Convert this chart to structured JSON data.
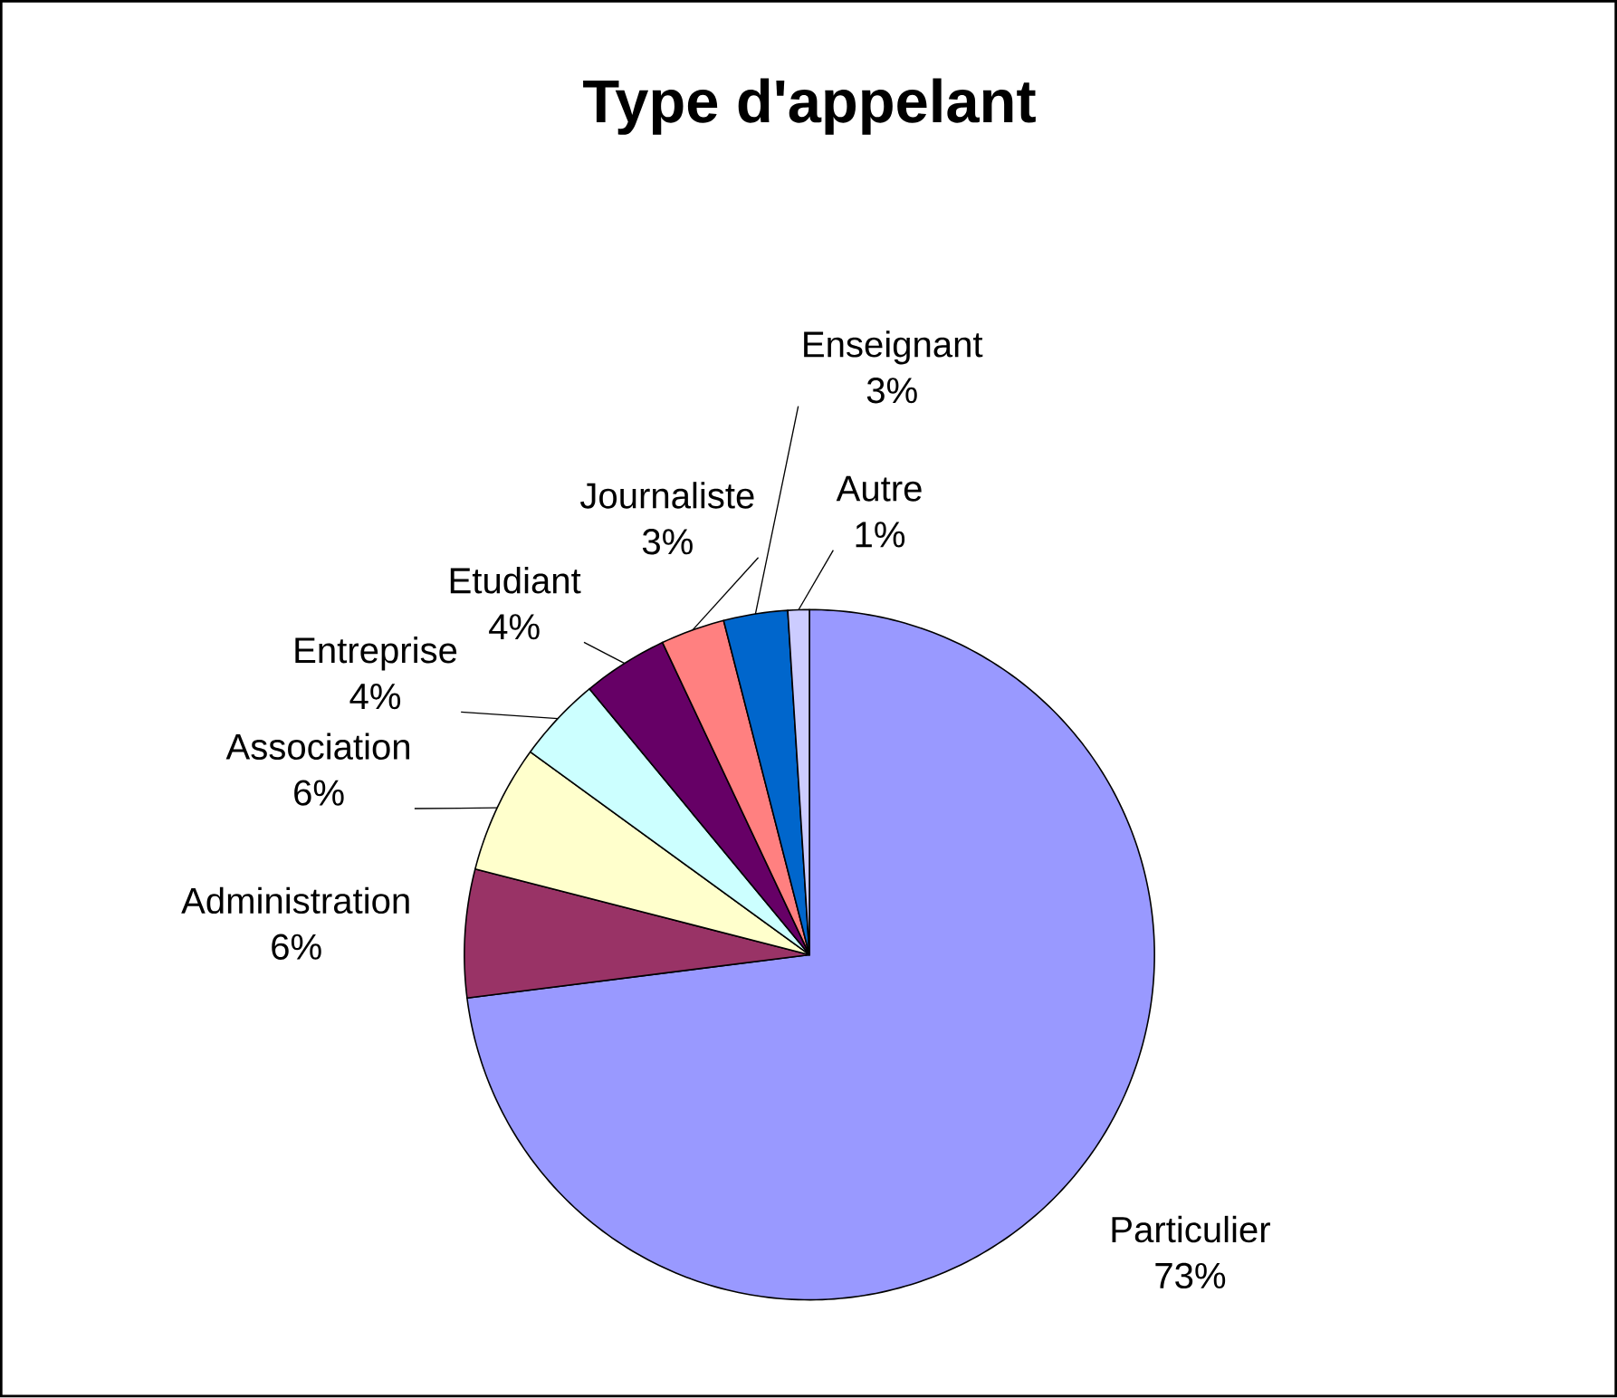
{
  "chart_data": {
    "type": "pie",
    "title": "Type d'appelant",
    "categories": [
      "Particulier",
      "Administration",
      "Association",
      "Entreprise",
      "Etudiant",
      "Journaliste",
      "Enseignant",
      "Autre"
    ],
    "values": [
      73,
      6,
      6,
      4,
      4,
      3,
      3,
      1
    ],
    "value_labels": [
      "73%",
      "6%",
      "6%",
      "4%",
      "4%",
      "3%",
      "3%",
      "1%"
    ],
    "colors": [
      "#9999ff",
      "#993366",
      "#ffffcc",
      "#ccffff",
      "#660066",
      "#ff8080",
      "#0066cc",
      "#ccccff"
    ]
  }
}
